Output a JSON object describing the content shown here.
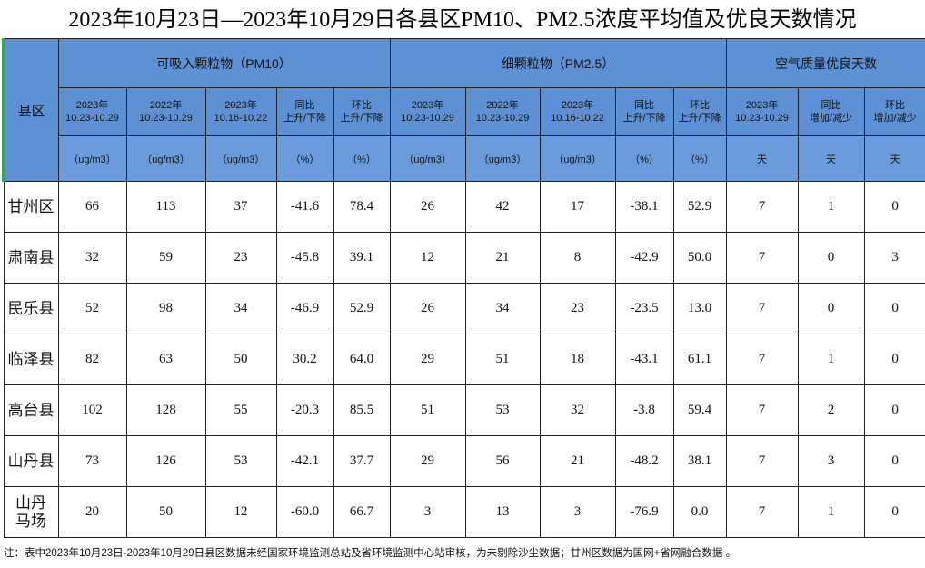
{
  "title": "2023年10月23日—2023年10月29日各县区PM10、PM2.5浓度平均值及优良天数情况",
  "header": {
    "district": "县区",
    "groups": [
      "可吸入颗粒物（PM10）",
      "细颗粒物（PM2.5）",
      "空气质量优良天数"
    ],
    "periods": [
      "2023年\n10.23-10.29",
      "2022年\n10.23-10.29",
      "2023年\n10.16-10.22",
      "同比\n上升/下降",
      "环比\n上升/下降",
      "2023年\n10.23-10.29",
      "2022年\n10.23-10.29",
      "2023年\n10.16-10.22",
      "同比\n上升/下降",
      "环比\n上升/下降",
      "2023年\n10.23-10.29",
      "同比\n增加/减少",
      "环比\n增加/减少"
    ],
    "units": [
      "（ug/m3）",
      "（ug/m3）",
      "（ug/m3）",
      "（%）",
      "（%）",
      "（ug/m3）",
      "（ug/m3）",
      "（ug/m3）",
      "（%）",
      "（%）",
      "天",
      "天",
      "天"
    ]
  },
  "rows": [
    {
      "district": "甘州区",
      "values": [
        "66",
        "113",
        "37",
        "-41.6",
        "78.4",
        "26",
        "42",
        "17",
        "-38.1",
        "52.9",
        "7",
        "1",
        "0"
      ]
    },
    {
      "district": "肃南县",
      "values": [
        "32",
        "59",
        "23",
        "-45.8",
        "39.1",
        "12",
        "21",
        "8",
        "-42.9",
        "50.0",
        "7",
        "0",
        "3"
      ]
    },
    {
      "district": "民乐县",
      "values": [
        "52",
        "98",
        "34",
        "-46.9",
        "52.9",
        "26",
        "34",
        "23",
        "-23.5",
        "13.0",
        "7",
        "0",
        "0"
      ]
    },
    {
      "district": "临泽县",
      "values": [
        "82",
        "63",
        "50",
        "30.2",
        "64.0",
        "29",
        "51",
        "18",
        "-43.1",
        "61.1",
        "7",
        "1",
        "0"
      ]
    },
    {
      "district": "高台县",
      "values": [
        "102",
        "128",
        "55",
        "-20.3",
        "85.5",
        "51",
        "53",
        "32",
        "-3.8",
        "59.4",
        "7",
        "2",
        "0"
      ]
    },
    {
      "district": "山丹县",
      "values": [
        "73",
        "126",
        "53",
        "-42.1",
        "37.7",
        "29",
        "56",
        "21",
        "-48.2",
        "38.1",
        "7",
        "3",
        "0"
      ]
    },
    {
      "district": "山丹\n马场",
      "values": [
        "20",
        "50",
        "12",
        "-60.0",
        "66.7",
        "3",
        "13",
        "3",
        "-76.9",
        "0.0",
        "7",
        "1",
        "0"
      ]
    }
  ],
  "note": "注：表中2023年10月23日-2023年10月29日县区数据未经国家环境监测总站及省环境监测中心站审核，为未剔除沙尘数据；甘州区数据为国网+省网融合数据 。"
}
